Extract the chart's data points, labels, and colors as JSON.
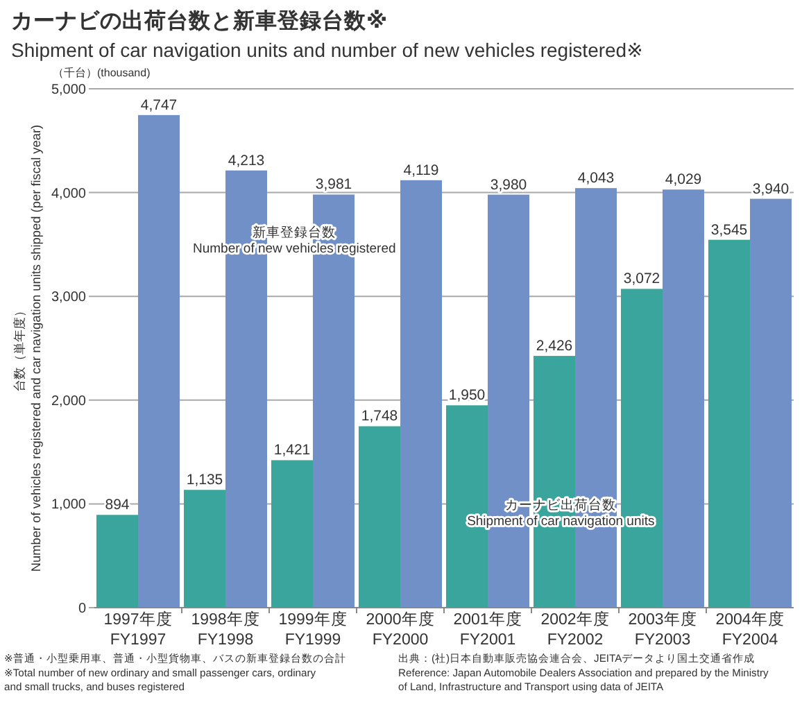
{
  "chart_data": {
    "type": "bar",
    "title": "カーナビの出荷台数と新車登録台数※",
    "subtitle": "Shipment of car navigation units and number of new vehicles registered※",
    "ylabel": "台数（単年度）\nNumber of vehicles registered and car navigation units shipped (per fiscal year)",
    "annotations": [
      "（千台）(thousand)",
      "※普通・小型乗用車、普通・小型貨物車、バスの新車登録台数の合計\n※Total number of new ordinary and small passenger cars, ordinary\nand small trucks, and buses registered",
      "出典：(社)日本自動車販売協会連合会、JEITAデータより国土交通省作成\nReference: Japan Automobile Dealers Association and prepared by the Ministry\nof Land, Infrastructure and Transport using data of JEITA"
    ],
    "categories": [
      "1997年度\nFY1997",
      "1998年度\nFY1998",
      "1999年度\nFY1999",
      "2000年度\nFY2000",
      "2001年度\nFY2001",
      "2002年度\nFY2002",
      "2003年度\nFY2003",
      "2004年度\nFY2004"
    ],
    "series": [
      {
        "name": "カーナビ出荷台数\nShipment of car navigation units",
        "color": "#3aa59c",
        "values": [
          894,
          1135,
          1421,
          1748,
          1950,
          2426,
          3072,
          3545
        ],
        "value_labels": [
          "894",
          "1,135",
          "1,421",
          "1,748",
          "1,950",
          "2,426",
          "3,072",
          "3,545"
        ]
      },
      {
        "name": "新車登録台数\nNumber of new vehicles registered",
        "color": "#7290c8",
        "values": [
          4747,
          4213,
          3981,
          4119,
          3980,
          4043,
          4029,
          3940
        ],
        "value_labels": [
          "4,747",
          "4,213",
          "3,981",
          "4,119",
          "3,980",
          "4,043",
          "4,029",
          "3,940"
        ]
      }
    ],
    "ylim": [
      0,
      5000
    ],
    "yticks": [
      0,
      {
        "value": 1000,
        "label": "1,000"
      },
      {
        "value": 2000,
        "label": "2,000"
      },
      {
        "value": 3000,
        "label": "3,000"
      },
      {
        "value": 4000,
        "label": "4,000"
      },
      {
        "value": 5000,
        "label": "5,000"
      }
    ],
    "grid": "y",
    "legend": false
  }
}
